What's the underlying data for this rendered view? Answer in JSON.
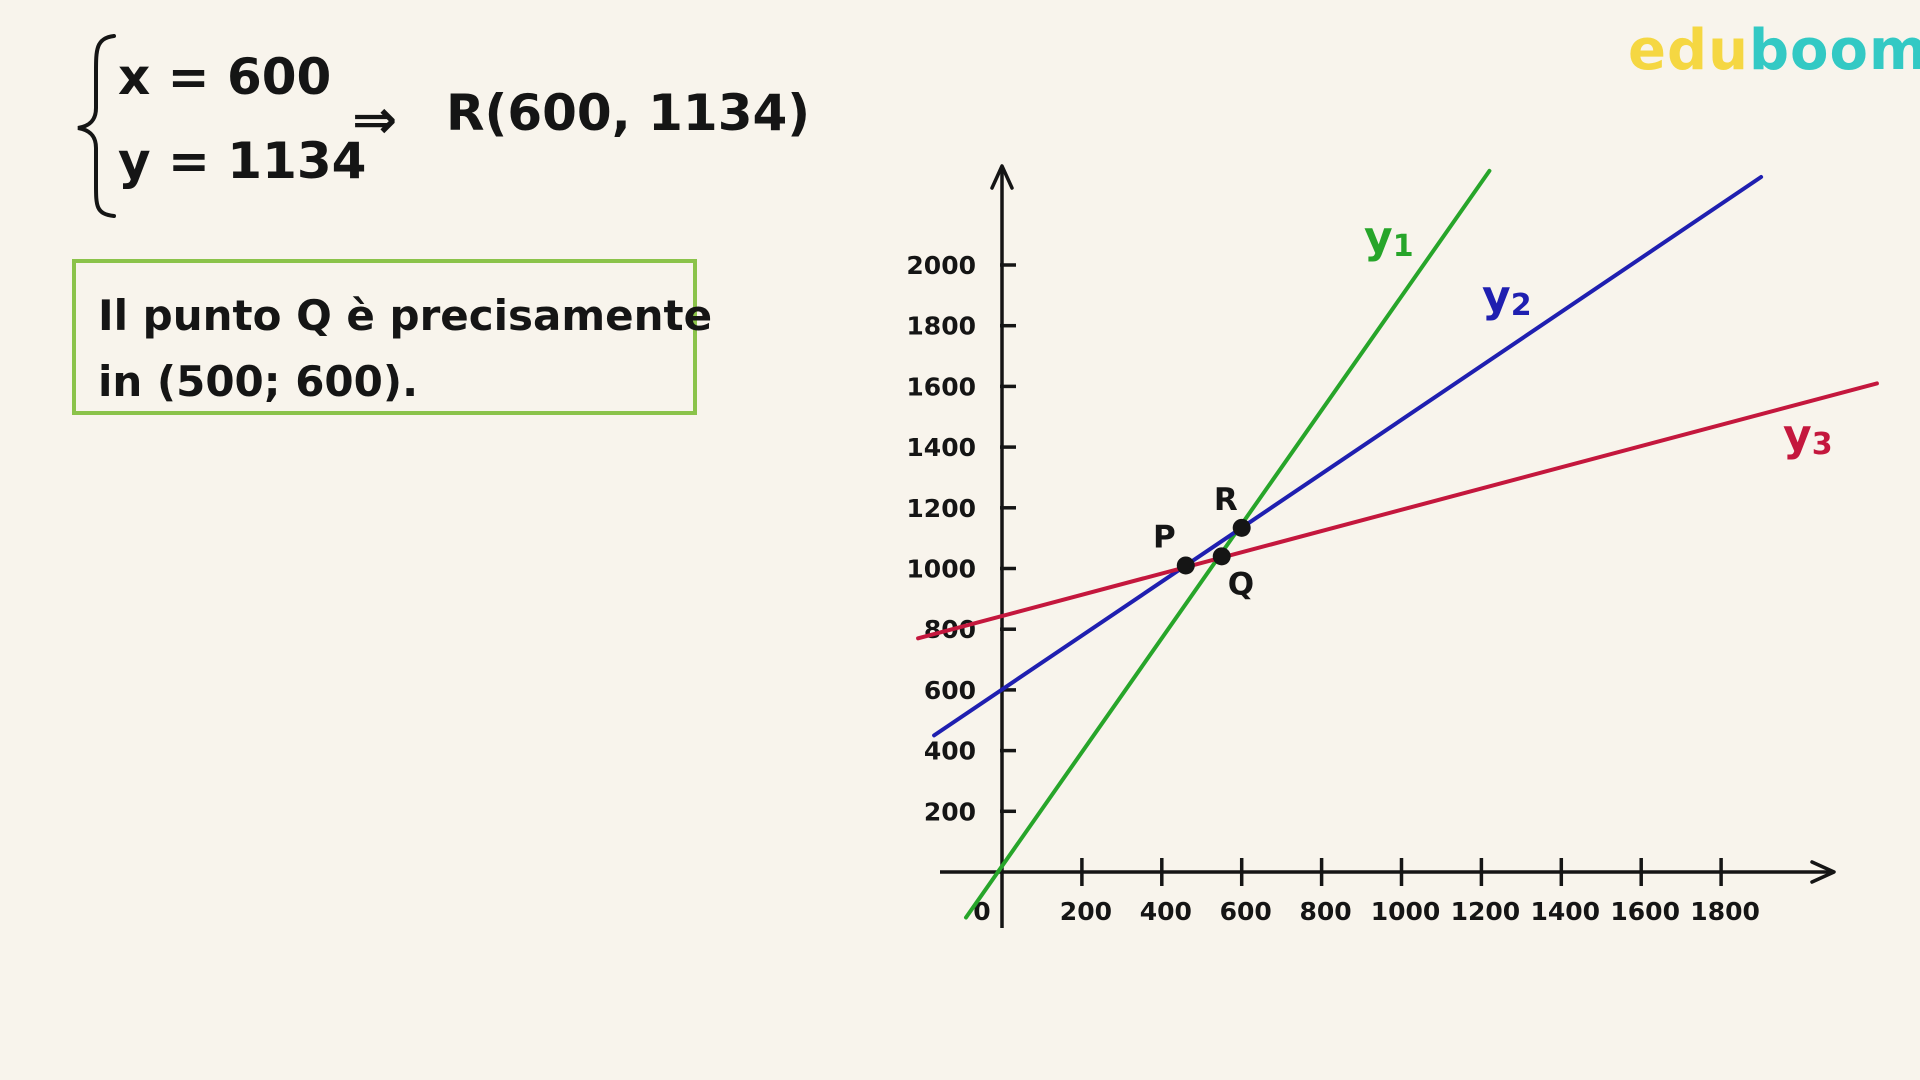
{
  "system": {
    "eq1": "x = 600",
    "eq2": "y = 1134",
    "implies_symbol": "⇒",
    "result": "R(600, 1134)"
  },
  "note": {
    "line1": "Il punto Q è precisamente",
    "line2": "in (500; 600).",
    "border_color": "#8bc34a"
  },
  "logo": {
    "part1": "edu",
    "part2": "boom",
    "color1": "#f5d742",
    "color2": "#33c9c4"
  },
  "chart_data": {
    "type": "line",
    "title": "",
    "xlabel": "",
    "ylabel": "",
    "origin_label": "0",
    "xlim": [
      -150,
      2100
    ],
    "ylim": [
      -100,
      2300
    ],
    "x_ticks": [
      200,
      400,
      600,
      800,
      1000,
      1200,
      1400,
      1600,
      1800
    ],
    "y_ticks": [
      200,
      400,
      600,
      800,
      1000,
      1200,
      1400,
      1600,
      1800,
      2000
    ],
    "grid": false,
    "series": [
      {
        "name": "y",
        "subscript": "1",
        "color": "#27a52a",
        "x": [
          -90,
          1220
        ],
        "y": [
          -150,
          2310
        ]
      },
      {
        "name": "y",
        "subscript": "2",
        "color": "#1f1fb0",
        "x": [
          -170,
          1900
        ],
        "y": [
          450,
          2290
        ]
      },
      {
        "name": "y",
        "subscript": "3",
        "color": "#c4173d",
        "x": [
          -210,
          2190
        ],
        "y": [
          770,
          1610
        ]
      }
    ],
    "points": [
      {
        "label": "P",
        "x": 460,
        "y": 1010
      },
      {
        "label": "R",
        "x": 600,
        "y": 1134
      },
      {
        "label": "Q",
        "x": 550,
        "y": 1040
      }
    ]
  }
}
